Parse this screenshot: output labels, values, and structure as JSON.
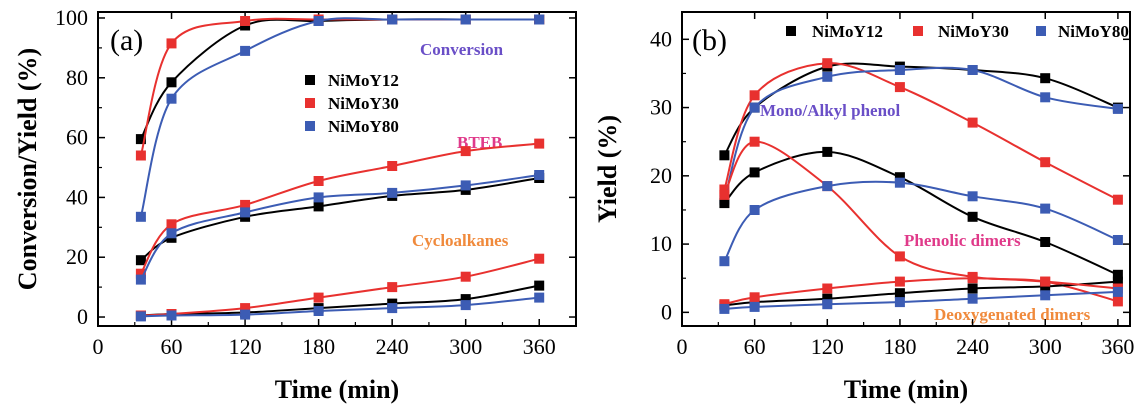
{
  "colors": {
    "NiMoY12": "#000000",
    "NiMoY30": "#e8312f",
    "NiMoY80": "#3c5cb4",
    "annot_conversion": "#6a4fc7",
    "annot_bteb": "#e03a8a",
    "annot_cycloalkanes": "#f08a3c",
    "annot_mono": "#6a4fc7",
    "annot_phenolic": "#e03a8a",
    "annot_deoxy": "#f08a3c"
  },
  "chart_data": [
    {
      "type": "scatter",
      "panel_label": "(a)",
      "xlabel": "Time (min)",
      "ylabel": "Conversion/Yield (%)",
      "xlim": [
        0,
        390
      ],
      "ylim": [
        -3,
        102
      ],
      "xticks": [
        0,
        60,
        120,
        180,
        240,
        300,
        360
      ],
      "yticks": [
        0,
        20,
        40,
        60,
        80,
        100
      ],
      "legend": {
        "placement": "top-center",
        "entries": [
          "NiMoY12",
          "NiMoY30",
          "NiMoY80"
        ]
      },
      "annotations": [
        "Conversion",
        "BTEB",
        "Cycloalkanes"
      ],
      "x": [
        35,
        60,
        120,
        180,
        240,
        300,
        360
      ],
      "groups": [
        {
          "label": "Conversion",
          "series": [
            {
              "name": "NiMoY12",
              "values": [
                59.5,
                78.5,
                97.5,
                99,
                99.5,
                99.5,
                99.5
              ]
            },
            {
              "name": "NiMoY30",
              "values": [
                54,
                91.5,
                99,
                99.5,
                99.5,
                99.5,
                99.5
              ]
            },
            {
              "name": "NiMoY80",
              "values": [
                33.5,
                73,
                89,
                99,
                99.5,
                99.5,
                99.5
              ]
            }
          ]
        },
        {
          "label": "BTEB",
          "series": [
            {
              "name": "NiMoY12",
              "values": [
                19,
                26.5,
                33.5,
                37,
                40.5,
                42.5,
                46.5
              ]
            },
            {
              "name": "NiMoY30",
              "values": [
                14.5,
                31,
                37.5,
                45.5,
                50.5,
                55.5,
                58
              ]
            },
            {
              "name": "NiMoY80",
              "values": [
                12.5,
                28,
                35,
                40,
                41.5,
                44,
                47.5
              ]
            }
          ]
        },
        {
          "label": "Cycloalkanes",
          "series": [
            {
              "name": "NiMoY12",
              "values": [
                0.5,
                1,
                1.5,
                3,
                4.5,
                6,
                10.5
              ]
            },
            {
              "name": "NiMoY30",
              "values": [
                0.5,
                1,
                3,
                6.5,
                10,
                13.5,
                19.5
              ]
            },
            {
              "name": "NiMoY80",
              "values": [
                0.2,
                0.5,
                0.8,
                2,
                3,
                4,
                6.5
              ]
            }
          ]
        }
      ]
    },
    {
      "type": "scatter",
      "panel_label": "(b)",
      "xlabel": "Time (min)",
      "ylabel": "Yield (%)",
      "xlim": [
        0,
        370
      ],
      "ylim": [
        -2,
        44
      ],
      "xticks": [
        0,
        60,
        120,
        180,
        240,
        300,
        360
      ],
      "yticks": [
        0,
        10,
        20,
        30,
        40
      ],
      "legend": {
        "placement": "top",
        "entries": [
          "NiMoY12",
          "NiMoY30",
          "NiMoY80"
        ]
      },
      "annotations": [
        "Mono/Alkyl phenol",
        "Phenolic dimers",
        "Deoxygenated dimers"
      ],
      "x": [
        35,
        60,
        120,
        180,
        240,
        300,
        360
      ],
      "groups": [
        {
          "label": "Mono/Alkyl phenol",
          "series": [
            {
              "name": "NiMoY12",
              "values": [
                23,
                30,
                36,
                36,
                35.5,
                34.3,
                30
              ]
            },
            {
              "name": "NiMoY30",
              "values": [
                18,
                31.8,
                36.5,
                33,
                27.8,
                22,
                16.5
              ]
            },
            {
              "name": "NiMoY80",
              "values": [
                16.5,
                30,
                34.5,
                35.5,
                35.5,
                31.5,
                29.8
              ]
            }
          ]
        },
        {
          "label": "Phenolic dimers",
          "series": [
            {
              "name": "NiMoY12",
              "values": [
                16,
                20.5,
                23.5,
                19.8,
                14,
                10.3,
                5.5
              ]
            },
            {
              "name": "NiMoY30",
              "values": [
                17.2,
                25,
                18.5,
                8.2,
                5.2,
                4.5,
                1.6
              ]
            },
            {
              "name": "NiMoY80",
              "values": [
                7.5,
                15,
                18.5,
                19,
                17,
                15.2,
                10.6
              ]
            }
          ]
        },
        {
          "label": "Deoxygenated dimers",
          "series": [
            {
              "name": "NiMoY12",
              "values": [
                1,
                1.5,
                2,
                2.8,
                3.5,
                3.8,
                4.5
              ]
            },
            {
              "name": "NiMoY30",
              "values": [
                1.2,
                2.2,
                3.5,
                4.5,
                5,
                4.5,
                3.5
              ]
            },
            {
              "name": "NiMoY80",
              "values": [
                0.5,
                0.8,
                1.2,
                1.5,
                2,
                2.5,
                3
              ]
            }
          ]
        }
      ]
    }
  ]
}
